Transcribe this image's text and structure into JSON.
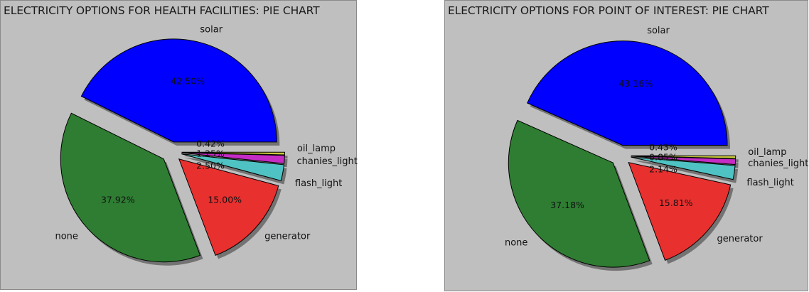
{
  "chart_data": [
    {
      "type": "pie",
      "title": "ELECTRICITY OPTIONS FOR HEALTH FACILITIES: PIE CHART",
      "labels": [
        "solar",
        "none",
        "generator",
        "flash_light",
        "chanies_light",
        "oil_lamp"
      ],
      "values": [
        42.5,
        37.92,
        15.0,
        2.5,
        1.25,
        0.42
      ],
      "value_labels": [
        "42.50%",
        "37.92%",
        "15.00%",
        "2.50%",
        "1.25%",
        "0.42%"
      ],
      "colors": [
        "#0000ff",
        "#2e7d32",
        "#e8302f",
        "#4fc3c3",
        "#c42cc4",
        "#c8c83c"
      ],
      "exploded": true,
      "shadow": true,
      "grid": false,
      "legend": false
    },
    {
      "type": "pie",
      "title": "ELECTRICITY OPTIONS FOR POINT OF INTEREST: PIE CHART",
      "labels": [
        "solar",
        "none",
        "generator",
        "flash_light",
        "chanies_light",
        "oil_lamp"
      ],
      "values": [
        43.16,
        37.18,
        15.81,
        2.14,
        0.85,
        0.43
      ],
      "value_labels": [
        "43.16%",
        "37.18%",
        "15.81%",
        "2.14%",
        "0.85%",
        "0.43%"
      ],
      "colors": [
        "#0000ff",
        "#2e7d32",
        "#e8302f",
        "#4fc3c3",
        "#c42cc4",
        "#c8c83c"
      ],
      "exploded": true,
      "shadow": true,
      "grid": false,
      "legend": false
    }
  ]
}
